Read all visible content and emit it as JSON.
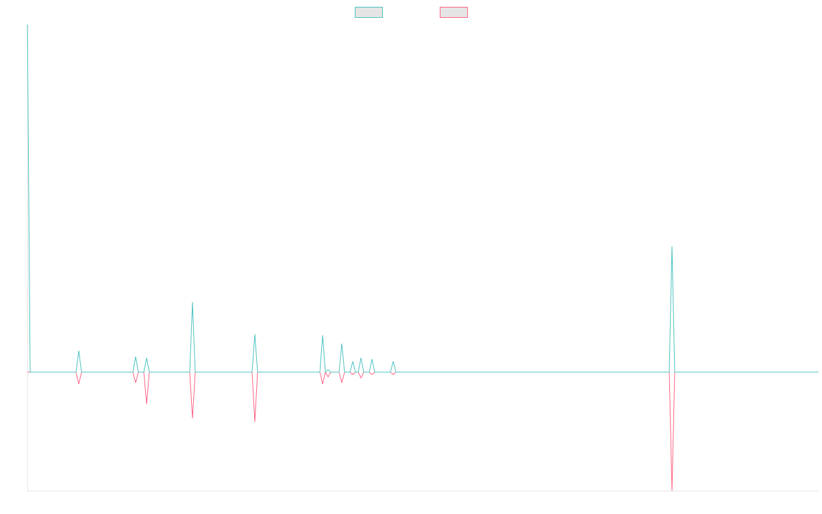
{
  "chart_data": {
    "type": "line",
    "x": [
      0,
      4,
      71,
      75,
      79,
      154,
      158,
      162,
      170,
      174,
      178,
      237,
      241,
      245,
      328,
      332,
      336,
      427,
      431,
      435,
      439,
      443,
      455,
      459,
      463,
      471,
      475,
      479,
      483,
      487,
      491,
      499,
      503,
      507,
      530,
      534,
      538,
      937,
      941,
      945,
      1155
    ],
    "series": [
      {
        "color": "#4bc0c0",
        "values": [
          293,
          0,
          0,
          18,
          0,
          0,
          13,
          0,
          0,
          12,
          0,
          0,
          59,
          0,
          0,
          32,
          0,
          0,
          31,
          0,
          2,
          0,
          0,
          24,
          0,
          0,
          9,
          0,
          0,
          12,
          0,
          0,
          11,
          0,
          0,
          9,
          0,
          0,
          106,
          0,
          0
        ]
      },
      {
        "color": "#ff6384",
        "values": [
          0,
          0,
          0,
          -10,
          0,
          0,
          -9,
          0,
          0,
          -27,
          0,
          0,
          -39,
          0,
          0,
          -42,
          0,
          0,
          -10,
          0,
          -4,
          0,
          0,
          -9,
          0,
          0,
          -2,
          0,
          0,
          -5,
          0,
          0,
          -2,
          0,
          0,
          -2,
          0,
          0,
          -100,
          0,
          0
        ]
      }
    ],
    "xlim": [
      0,
      1155
    ],
    "ylim": [
      -100,
      293
    ]
  }
}
